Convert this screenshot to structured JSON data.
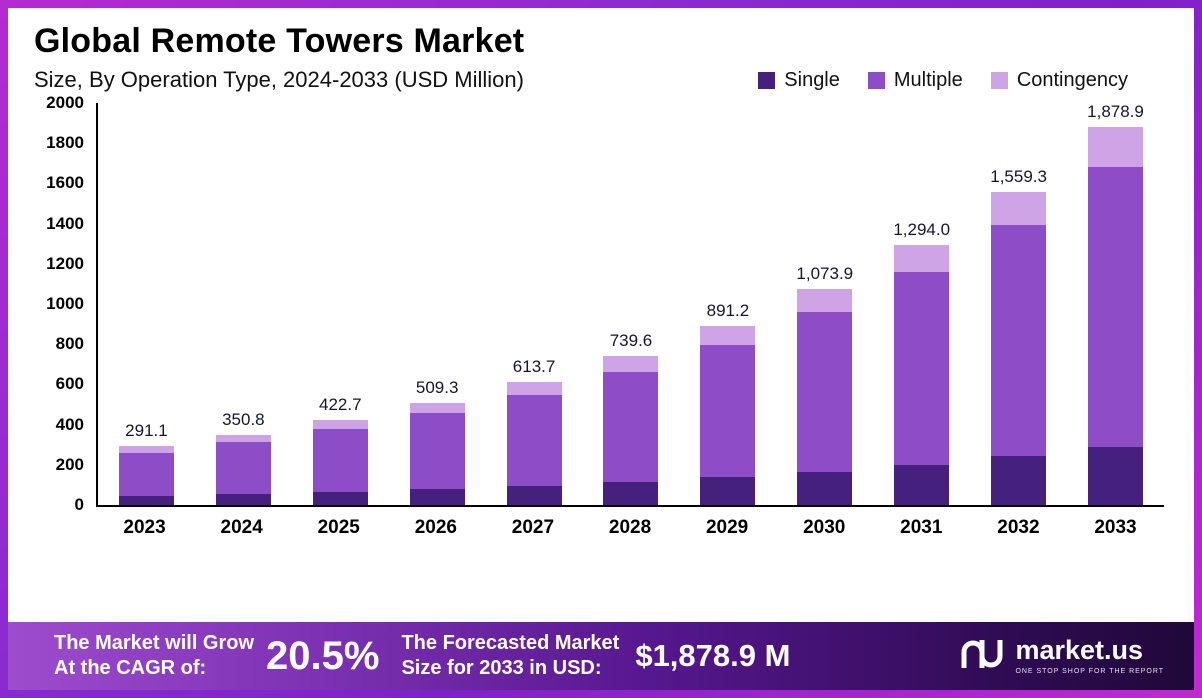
{
  "chart_data": {
    "type": "bar",
    "stacked": true,
    "title": "Global Remote Towers Market",
    "subtitle": "Size, By Operation Type, 2024-2033 (USD Million)",
    "categories": [
      "2023",
      "2024",
      "2025",
      "2026",
      "2027",
      "2028",
      "2029",
      "2030",
      "2031",
      "2032",
      "2033"
    ],
    "series": [
      {
        "name": "Single",
        "color": "#45217d",
        "values": [
          45.1,
          54.4,
          65.5,
          78.9,
          95.1,
          114.6,
          138.1,
          166.5,
          200.6,
          241.7,
          291.2
        ]
      },
      {
        "name": "Multiple",
        "color": "#8d4dc6",
        "values": [
          215.4,
          259.6,
          312.8,
          376.9,
          454.1,
          547.3,
          659.5,
          794.7,
          957.6,
          1153.9,
          1390.4
        ]
      },
      {
        "name": "Contingency",
        "color": "#cfa4e6",
        "values": [
          30.6,
          36.8,
          44.4,
          53.5,
          64.5,
          77.7,
          93.6,
          112.7,
          135.8,
          163.7,
          197.3
        ]
      }
    ],
    "totals": [
      291.1,
      350.8,
      422.7,
      509.3,
      613.7,
      739.6,
      891.2,
      1073.9,
      1294.0,
      1559.3,
      1878.9
    ],
    "total_labels": [
      "291.1",
      "350.8",
      "422.7",
      "509.3",
      "613.7",
      "739.6",
      "891.2",
      "1,073.9",
      "1,294.0",
      "1,559.3",
      "1,878.9"
    ],
    "xlabel": "",
    "ylabel": "",
    "ylim": [
      0,
      2000
    ],
    "ytick_step": 200,
    "ytick_labels": [
      "0",
      "200",
      "400",
      "600",
      "800",
      "1000",
      "1200",
      "1400",
      "1600",
      "1800",
      "2000"
    ],
    "grid": false,
    "legend_position": "top-right"
  },
  "footer": {
    "growth_label_line1": "The Market will Grow",
    "growth_label_line2": "At the CAGR of:",
    "cagr_value": "20.5%",
    "forecast_label_line1": "The Forecasted Market",
    "forecast_label_line2": "Size for 2033 in USD:",
    "forecast_value": "$1,878.9 M",
    "brand_name": "market.us",
    "brand_tagline": "ONE STOP SHOP FOR THE REPORT"
  }
}
